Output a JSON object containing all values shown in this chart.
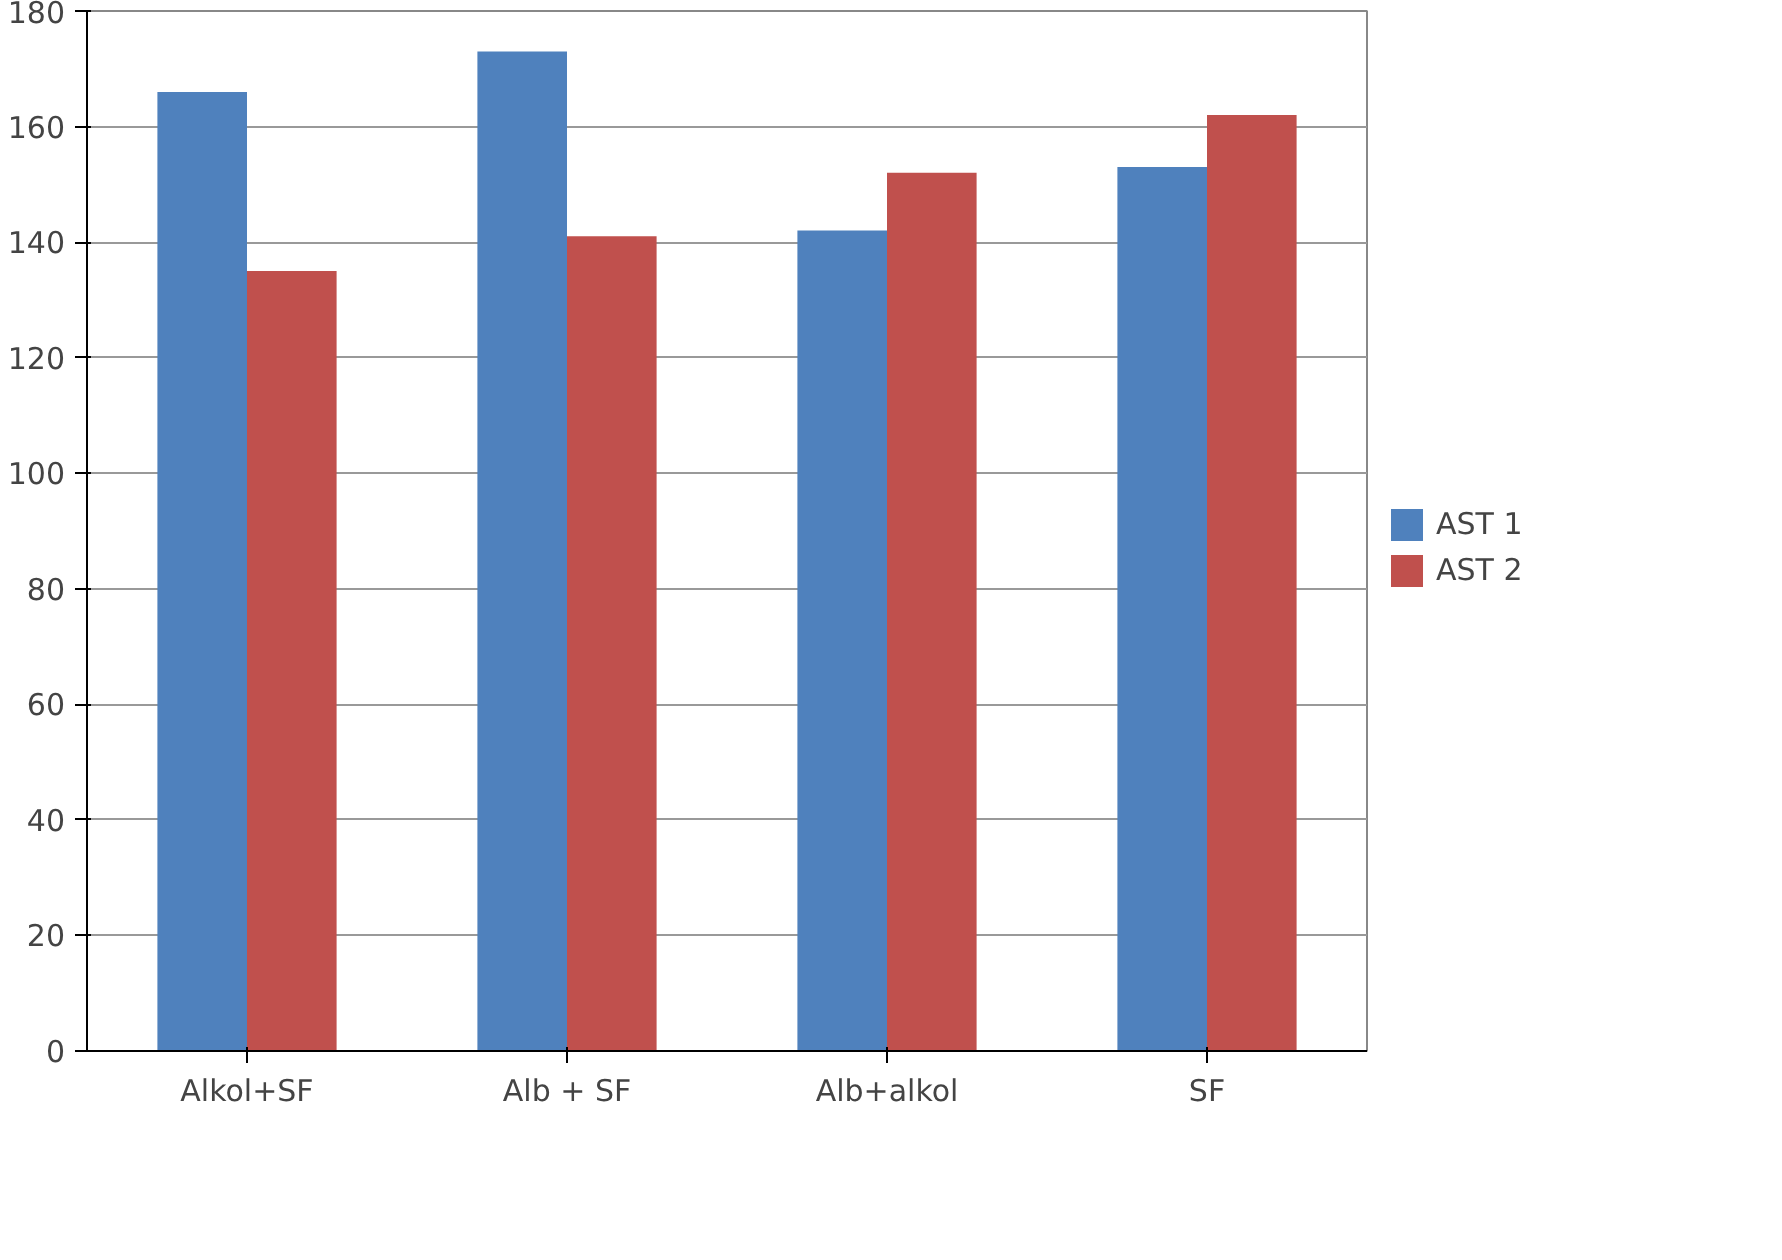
{
  "chart_data": {
    "type": "bar",
    "categories": [
      "Alkol+SF",
      "Alb + SF",
      "Alb+alkol",
      "SF"
    ],
    "series": [
      {
        "name": "AST 1",
        "color": "#4f81bd",
        "values": [
          166,
          173,
          142,
          153
        ]
      },
      {
        "name": "AST 2",
        "color": "#c0504d",
        "values": [
          135,
          141,
          152,
          162
        ]
      }
    ],
    "ylim": [
      0,
      180
    ],
    "yticks": [
      0,
      20,
      40,
      60,
      80,
      100,
      120,
      140,
      160,
      180
    ],
    "grid": "y",
    "legend": "right"
  }
}
